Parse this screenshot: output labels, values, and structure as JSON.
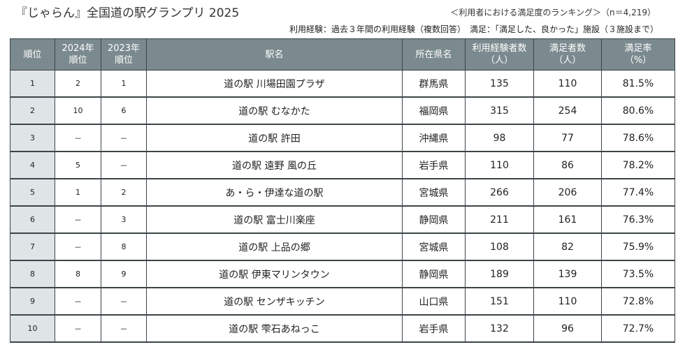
{
  "header": {
    "title": "『じゃらん』全国道の駅グランプリ 2025",
    "subtitle": "＜利用者における満足度のランキング＞（n＝4,219）",
    "note": "利用経験：過去３年間の利用経験（複数回答）　満足：「満足した、良かった」施設（３施設まで）"
  },
  "table": {
    "columns": [
      {
        "line1": "順位",
        "line2": ""
      },
      {
        "line1": "2024年",
        "line2": "順位"
      },
      {
        "line1": "2023年",
        "line2": "順位"
      },
      {
        "line1": "駅名",
        "line2": ""
      },
      {
        "line1": "所在県名",
        "line2": ""
      },
      {
        "line1": "利用経験者数",
        "line2": "（人）"
      },
      {
        "line1": "満足者数",
        "line2": "（人）"
      },
      {
        "line1": "満足率",
        "line2": "（%）"
      }
    ],
    "rows": [
      {
        "rank": "1",
        "y2024": "2",
        "y2023": "1",
        "name": "道の駅 川場田園プラザ",
        "pref": "群馬県",
        "users": "135",
        "satisfied": "110",
        "rate": "81.5%"
      },
      {
        "rank": "2",
        "y2024": "10",
        "y2023": "6",
        "name": "道の駅 むなかた",
        "pref": "福岡県",
        "users": "315",
        "satisfied": "254",
        "rate": "80.6%"
      },
      {
        "rank": "3",
        "y2024": "－",
        "y2023": "－",
        "name": "道の駅 許田",
        "pref": "沖縄県",
        "users": "98",
        "satisfied": "77",
        "rate": "78.6%"
      },
      {
        "rank": "4",
        "y2024": "5",
        "y2023": "－",
        "name": "道の駅 遠野 風の丘",
        "pref": "岩手県",
        "users": "110",
        "satisfied": "86",
        "rate": "78.2%"
      },
      {
        "rank": "5",
        "y2024": "1",
        "y2023": "2",
        "name": "あ・ら・伊達な道の駅",
        "pref": "宮城県",
        "users": "266",
        "satisfied": "206",
        "rate": "77.4%"
      },
      {
        "rank": "6",
        "y2024": "－",
        "y2023": "3",
        "name": "道の駅 富士川楽座",
        "pref": "静岡県",
        "users": "211",
        "satisfied": "161",
        "rate": "76.3%"
      },
      {
        "rank": "7",
        "y2024": "－",
        "y2023": "8",
        "name": "道の駅 上品の郷",
        "pref": "宮城県",
        "users": "108",
        "satisfied": "82",
        "rate": "75.9%"
      },
      {
        "rank": "8",
        "y2024": "8",
        "y2023": "9",
        "name": "道の駅 伊東マリンタウン",
        "pref": "静岡県",
        "users": "189",
        "satisfied": "139",
        "rate": "73.5%"
      },
      {
        "rank": "9",
        "y2024": "－",
        "y2023": "－",
        "name": "道の駅 センザキッチン",
        "pref": "山口県",
        "users": "151",
        "satisfied": "110",
        "rate": "72.8%"
      },
      {
        "rank": "10",
        "y2024": "－",
        "y2023": "－",
        "name": "道の駅 雫石あねっこ",
        "pref": "岩手県",
        "users": "132",
        "satisfied": "96",
        "rate": "72.7%"
      }
    ]
  }
}
